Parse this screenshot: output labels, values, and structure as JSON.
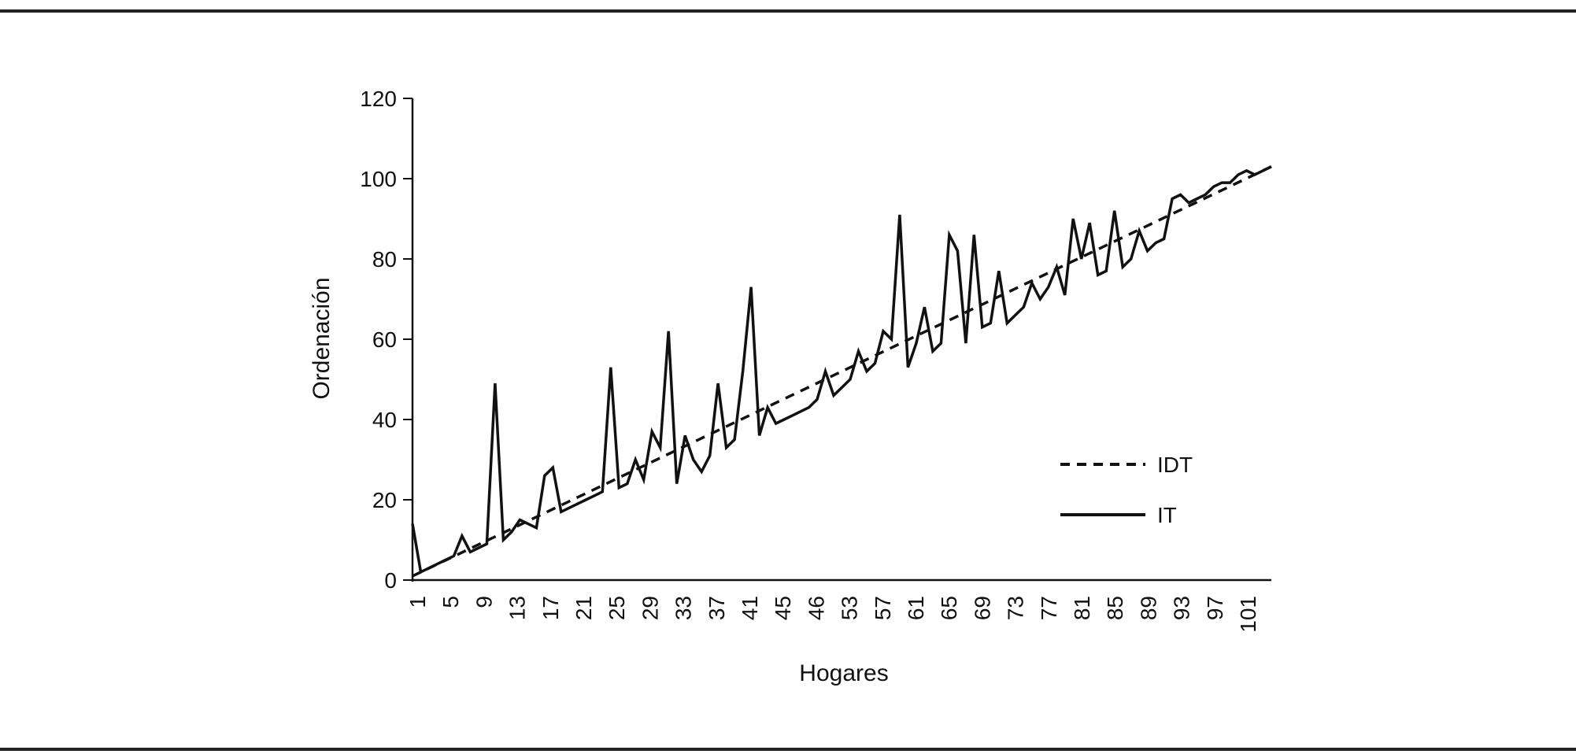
{
  "chart_data": {
    "type": "line",
    "title": "",
    "xlabel": "Hogares",
    "ylabel": "Ordenación",
    "ylim": [
      0,
      120
    ],
    "yticks": [
      0,
      20,
      40,
      60,
      80,
      100,
      120
    ],
    "xlim": [
      1,
      105
    ],
    "xtick_labels": [
      "1",
      "5",
      "9",
      "13",
      "17",
      "21",
      "25",
      "29",
      "33",
      "37",
      "41",
      "45",
      "46",
      "53",
      "57",
      "61",
      "65",
      "69",
      "73",
      "77",
      "81",
      "85",
      "89",
      "93",
      "97",
      "101"
    ],
    "grid": false,
    "legend_position": "right-middle",
    "series": [
      {
        "name": "IDT",
        "style": "dashed",
        "color": "#111111",
        "x": [
          1,
          105
        ],
        "y": [
          1,
          103
        ]
      },
      {
        "name": "IT",
        "style": "solid",
        "color": "#111111",
        "x": [
          1,
          2,
          3,
          4,
          5,
          6,
          7,
          8,
          9,
          10,
          11,
          12,
          13,
          14,
          15,
          16,
          17,
          18,
          19,
          20,
          21,
          22,
          23,
          24,
          25,
          26,
          27,
          28,
          29,
          30,
          31,
          32,
          33,
          34,
          35,
          36,
          37,
          38,
          39,
          40,
          41,
          42,
          43,
          44,
          45,
          46,
          47,
          48,
          49,
          50,
          51,
          52,
          53,
          54,
          55,
          56,
          57,
          58,
          59,
          60,
          61,
          62,
          63,
          64,
          65,
          66,
          67,
          68,
          69,
          70,
          71,
          72,
          73,
          74,
          75,
          76,
          77,
          78,
          79,
          80,
          81,
          82,
          83,
          84,
          85,
          86,
          87,
          88,
          89,
          90,
          91,
          92,
          93,
          94,
          95,
          96,
          97,
          98,
          99,
          100,
          101,
          102,
          103,
          104,
          105
        ],
        "y": [
          14,
          2,
          3,
          4,
          5,
          6,
          11,
          7,
          8,
          9,
          49,
          10,
          12,
          15,
          14,
          13,
          26,
          28,
          17,
          18,
          19,
          20,
          21,
          22,
          53,
          23,
          24,
          30,
          25,
          37,
          33,
          62,
          24,
          36,
          30,
          27,
          31,
          49,
          33,
          35,
          52,
          73,
          36,
          43,
          39,
          40,
          41,
          42,
          43,
          45,
          52,
          46,
          48,
          50,
          57,
          52,
          54,
          62,
          60,
          91,
          53,
          59,
          68,
          57,
          59,
          86,
          82,
          59,
          86,
          63,
          64,
          77,
          64,
          66,
          68,
          74,
          70,
          73,
          78,
          71,
          90,
          80,
          89,
          76,
          77,
          92,
          78,
          80,
          87,
          82,
          84,
          85,
          95,
          96,
          94,
          95,
          96,
          98,
          99,
          99,
          101,
          102,
          101,
          102,
          103
        ]
      }
    ]
  }
}
